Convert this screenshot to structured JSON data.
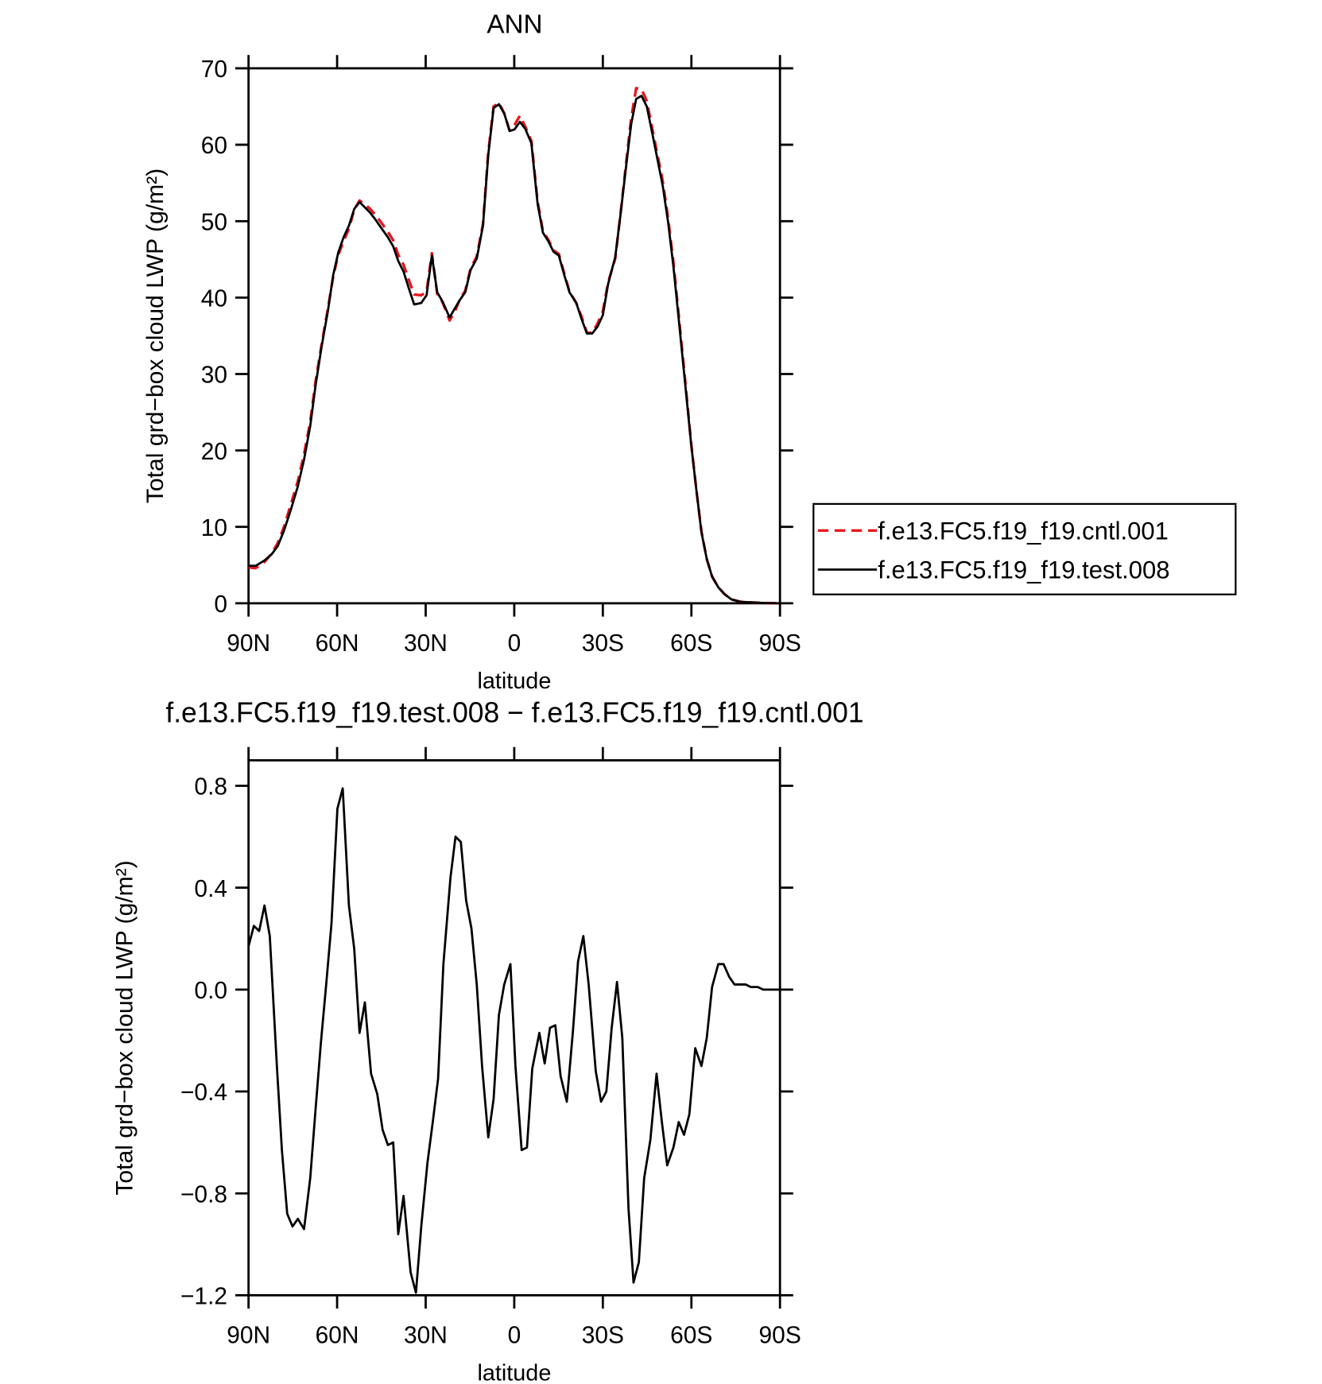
{
  "chart_data": [
    {
      "type": "line",
      "title": "ANN",
      "ylabel": "Total grd−box cloud LWP (g/m²)",
      "xlabel": "latitude",
      "xlim": [
        90,
        -90
      ],
      "xticks": [
        {
          "value": 90,
          "label": "90N"
        },
        {
          "value": 60,
          "label": "60N"
        },
        {
          "value": 30,
          "label": "30N"
        },
        0,
        {
          "value": -30,
          "label": "30S"
        },
        {
          "value": -60,
          "label": "60S"
        },
        {
          "value": -90,
          "label": "90S"
        }
      ],
      "ylim": [
        0,
        70
      ],
      "yticks": [
        0,
        10,
        20,
        30,
        40,
        50,
        60,
        70
      ],
      "legend": "right",
      "x": [
        90,
        87.6,
        84.6,
        82.2,
        80.1,
        78,
        75.7,
        73.3,
        71.2,
        69.1,
        67.3,
        65.2,
        63.1,
        61.3,
        59.6,
        57.8,
        56,
        54.2,
        52.4,
        50.6,
        48.8,
        47,
        45.2,
        42.8,
        41,
        39.3,
        37.5,
        35.7,
        33.9,
        31.5,
        29.7,
        27.9,
        26.1,
        24.3,
        21.9,
        20.1,
        18.4,
        16.6,
        14.8,
        12.7,
        10.6,
        8.8,
        7,
        5.2,
        3.4,
        1.6,
        -0.1,
        -1.9,
        -3.7,
        -5.8,
        -7.9,
        -9.7,
        -11.5,
        -13.3,
        -15.1,
        -16.9,
        -18.7,
        -21,
        -22.8,
        -24.6,
        -26.4,
        -28.2,
        -30,
        -31.8,
        -34.2,
        -36,
        -37.8,
        -39.6,
        -41.3,
        -43.1,
        -44.9,
        -46.7,
        -48.5,
        -50.3,
        -52.1,
        -53.9,
        -55.7,
        -58.1,
        -59.9,
        -61.6,
        -63.4,
        -65.2,
        -67,
        -69.1,
        -71.2,
        -73.6,
        -76.6,
        -81,
        -85.5,
        -90
      ],
      "series": [
        {
          "name": "f.e13.FC5.f19_f19.cntl.001",
          "color": "#e8141c",
          "linestyle": "dashed",
          "values": [
            4.7,
            4.6,
            5.4,
            6.5,
            7.9,
            10,
            12.9,
            16,
            19.5,
            23.8,
            29,
            34,
            38.6,
            42.8,
            45.6,
            47.4,
            49,
            51.5,
            52.7,
            52.2,
            51.6,
            50.8,
            49.9,
            48.6,
            47.5,
            45.6,
            44.3,
            42.3,
            40.4,
            40.3,
            40.8,
            45.8,
            40.5,
            39.4,
            37,
            38.2,
            39.8,
            40.9,
            43.8,
            45.4,
            49.6,
            59,
            65,
            65.5,
            64.1,
            61.9,
            62.6,
            63.8,
            62.4,
            60.5,
            52.6,
            48.7,
            47.6,
            46.2,
            45.7,
            43.2,
            40.8,
            39.3,
            37.5,
            35.4,
            35.4,
            36.6,
            38.2,
            42,
            45.1,
            51,
            57.3,
            63.5,
            67.4,
            67.3,
            65.7,
            62.2,
            58.7,
            55.2,
            50.4,
            44.6,
            37.7,
            28.3,
            21,
            15.1,
            9.4,
            5.8,
            3.5,
            2.1,
            1.2,
            0.5,
            0.2,
            0.1,
            0.03,
            0
          ]
        },
        {
          "name": "f.e13.FC5.f19_f19.test.008",
          "color": "#000000",
          "linestyle": "solid",
          "values": [
            4.9,
            4.9,
            5.6,
            6.4,
            7.5,
            9.5,
            12.2,
            15.3,
            18.8,
            23.2,
            28.5,
            33.7,
            38.3,
            43,
            45.9,
            47.9,
            49.4,
            51.6,
            52.5,
            51.8,
            51.1,
            50.2,
            49.2,
            47.9,
            46.7,
            44.8,
            43.4,
            41.2,
            39.1,
            39.3,
            40.3,
            45.5,
            40.7,
            39.5,
            37.4,
            38.6,
            39.7,
            40.7,
            43.6,
            45.1,
            49.4,
            58.7,
            64.8,
            65.3,
            64.1,
            61.8,
            62,
            63,
            62.1,
            60.2,
            52.3,
            48.5,
            47.4,
            46,
            45.5,
            43,
            40.7,
            39.3,
            37.2,
            35.3,
            35.3,
            36.2,
            37.7,
            41.8,
            45.3,
            50.9,
            56.9,
            62.7,
            66,
            66.4,
            65,
            61.6,
            58.1,
            54.6,
            49.9,
            44.1,
            37.2,
            27.9,
            20.9,
            15.1,
            9.3,
            5.8,
            3.5,
            2.1,
            1.2,
            0.5,
            0.2,
            0.1,
            0.03,
            0
          ]
        }
      ]
    },
    {
      "type": "line",
      "title": "f.e13.FC5.f19_f19.test.008 − f.e13.FC5.f19_f19.cntl.001",
      "ylabel": "Total grd−box cloud LWP (g/m²)",
      "xlabel": "latitude",
      "xlim": [
        90,
        -90
      ],
      "xticks": [
        {
          "value": 90,
          "label": "90N"
        },
        {
          "value": 60,
          "label": "60N"
        },
        {
          "value": 30,
          "label": "30N"
        },
        0,
        {
          "value": -30,
          "label": "30S"
        },
        {
          "value": -60,
          "label": "60S"
        },
        {
          "value": -90,
          "label": "90S"
        }
      ],
      "ylim": [
        -1.2,
        0.9
      ],
      "yticks": [
        {
          "value": -1.2,
          "label": "−1.2"
        },
        {
          "value": -0.8,
          "label": "−0.8"
        },
        {
          "value": -0.4,
          "label": "−0.4"
        },
        {
          "value": 0,
          "label": "0.0"
        },
        0.4,
        0.8
      ],
      "x": [
        90,
        88.2,
        86.4,
        84.6,
        82.8,
        80.4,
        78.7,
        76.9,
        75.1,
        73.3,
        71.2,
        69.1,
        67.3,
        65.5,
        63.7,
        61.9,
        59.9,
        58.1,
        56,
        54.2,
        52.4,
        50.6,
        48.5,
        46.4,
        44.6,
        42.8,
        41,
        39.3,
        37.5,
        35.1,
        33.3,
        31.5,
        29.4,
        27.6,
        25.8,
        24,
        21.6,
        19.9,
        18.1,
        16.3,
        14.5,
        12.7,
        10.9,
        8.8,
        7,
        5.2,
        3.4,
        1.3,
        -0.4,
        -2.5,
        -4.3,
        -6.1,
        -8.5,
        -10.3,
        -12.1,
        -13.9,
        -15.7,
        -17.8,
        -19.9,
        -21.6,
        -23.4,
        -25.2,
        -27.6,
        -29.4,
        -31.2,
        -33,
        -34.8,
        -36.6,
        -38.7,
        -40.4,
        -42.2,
        -44,
        -46.1,
        -48.2,
        -50,
        -51.8,
        -53.9,
        -55.7,
        -57.5,
        -59.3,
        -61.3,
        -63.4,
        -65.2,
        -67,
        -69.1,
        -70.9,
        -72.8,
        -74.6,
        -76.6,
        -78.4,
        -80.1,
        -82.5,
        -84.3,
        -90
      ],
      "series": [
        {
          "color": "#000000",
          "linestyle": "solid",
          "values": [
            0.17,
            0.25,
            0.23,
            0.33,
            0.21,
            -0.3,
            -0.63,
            -0.88,
            -0.93,
            -0.9,
            -0.94,
            -0.74,
            -0.47,
            -0.21,
            0.02,
            0.26,
            0.71,
            0.79,
            0.33,
            0.16,
            -0.17,
            -0.05,
            -0.33,
            -0.41,
            -0.55,
            -0.61,
            -0.6,
            -0.96,
            -0.81,
            -1.11,
            -1.19,
            -0.93,
            -0.68,
            -0.52,
            -0.35,
            0.1,
            0.44,
            0.6,
            0.58,
            0.35,
            0.24,
            0.02,
            -0.3,
            -0.58,
            -0.43,
            -0.1,
            0.02,
            0.1,
            -0.3,
            -0.63,
            -0.62,
            -0.31,
            -0.17,
            -0.29,
            -0.15,
            -0.14,
            -0.34,
            -0.44,
            -0.16,
            0.11,
            0.21,
            0.02,
            -0.32,
            -0.44,
            -0.4,
            -0.15,
            0.03,
            -0.19,
            -0.86,
            -1.15,
            -1.07,
            -0.74,
            -0.59,
            -0.33,
            -0.52,
            -0.69,
            -0.62,
            -0.52,
            -0.57,
            -0.49,
            -0.23,
            -0.3,
            -0.19,
            0.01,
            0.1,
            0.1,
            0.05,
            0.02,
            0.02,
            0.02,
            0.01,
            0.01,
            0,
            0
          ]
        }
      ]
    }
  ]
}
